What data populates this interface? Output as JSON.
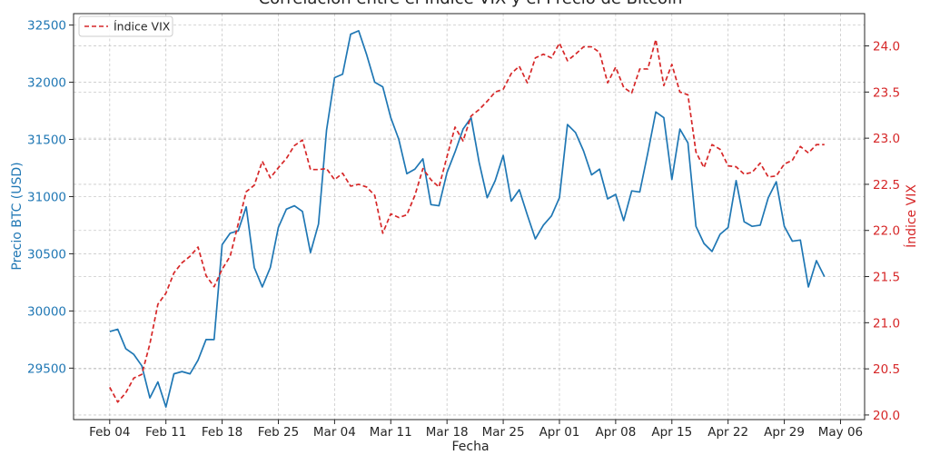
{
  "chart_data": {
    "type": "line",
    "title": "Correlación entre el Índice VIX y el Precio de Bitcoin",
    "xlabel": "Fecha",
    "ylabel_left": "Precio BTC (USD)",
    "ylabel_right": "Índice VIX",
    "x_tick_labels": [
      "Feb 04",
      "Feb 11",
      "Feb 18",
      "Feb 25",
      "Mar 04",
      "Mar 11",
      "Mar 18",
      "Mar 25",
      "Apr 01",
      "Apr 08",
      "Apr 15",
      "Apr 22",
      "Apr 29",
      "May 06"
    ],
    "x_tick_days": [
      0,
      7,
      14,
      21,
      28,
      35,
      42,
      49,
      56,
      63,
      70,
      77,
      84,
      91
    ],
    "xlim": [
      -4.5,
      94
    ],
    "y_left_ticks": [
      29500,
      30000,
      30500,
      31000,
      31500,
      32000,
      32500
    ],
    "ylim_left": [
      29050,
      32600
    ],
    "y_right_ticks": [
      "20.0",
      "20.5",
      "21.0",
      "21.5",
      "22.0",
      "22.5",
      "23.0",
      "23.5",
      "24.0"
    ],
    "ylim_right": [
      19.95,
      24.35
    ],
    "grid": true,
    "legend": {
      "position": "top-left",
      "entries": [
        "Índice VIX"
      ]
    },
    "colors": {
      "btc": "#1f77b4",
      "vix": "#d62728"
    },
    "series": [
      {
        "axis": "left",
        "start_day": 0,
        "values": [
          29820,
          29840,
          29670,
          29620,
          29520,
          29240,
          29380,
          29160,
          29450,
          29470,
          29450,
          29570,
          29750,
          29750,
          30580,
          30680,
          30700,
          30910,
          30380,
          30210,
          30380,
          30730,
          30890,
          30920,
          30870,
          30510,
          30760,
          31580,
          32040,
          32070,
          32420,
          32450,
          32240,
          32000,
          31960,
          31690,
          31500,
          31200,
          31240,
          31330,
          30930,
          30920,
          31210,
          31390,
          31590,
          31690,
          31300,
          30990,
          31140,
          31360,
          30960,
          31060,
          30840,
          30630,
          30750,
          30830,
          30990,
          31630,
          31560,
          31400,
          31190,
          31240,
          30980,
          31020,
          30790,
          31050,
          31040,
          31380,
          31740,
          31690,
          31150,
          31590,
          31470,
          30740,
          30590,
          30520,
          30670,
          30730,
          31140,
          30780,
          30740,
          30750,
          30990,
          31130,
          30740,
          30610,
          30620,
          30210,
          30440,
          30300
        ]
      },
      {
        "name": "Índice VIX",
        "axis": "right",
        "start_day": 0,
        "values": [
          20.3,
          20.14,
          20.24,
          20.4,
          20.44,
          20.77,
          21.2,
          21.32,
          21.54,
          21.65,
          21.72,
          21.82,
          21.51,
          21.39,
          21.58,
          21.72,
          22.07,
          22.42,
          22.49,
          22.75,
          22.57,
          22.68,
          22.78,
          22.92,
          22.98,
          22.66,
          22.66,
          22.67,
          22.55,
          22.62,
          22.48,
          22.5,
          22.47,
          22.38,
          21.97,
          22.18,
          22.14,
          22.17,
          22.38,
          22.67,
          22.55,
          22.47,
          22.8,
          23.12,
          22.97,
          23.24,
          23.31,
          23.4,
          23.5,
          23.53,
          23.7,
          23.78,
          23.6,
          23.87,
          23.91,
          23.87,
          24.03,
          23.84,
          23.91,
          23.99,
          23.99,
          23.93,
          23.6,
          23.77,
          23.55,
          23.49,
          23.75,
          23.75,
          24.07,
          23.57,
          23.8,
          23.5,
          23.47,
          22.85,
          22.68,
          22.93,
          22.88,
          22.7,
          22.69,
          22.61,
          22.63,
          22.73,
          22.58,
          22.59,
          22.72,
          22.76,
          22.91,
          22.84,
          22.93,
          22.93
        ]
      }
    ]
  }
}
